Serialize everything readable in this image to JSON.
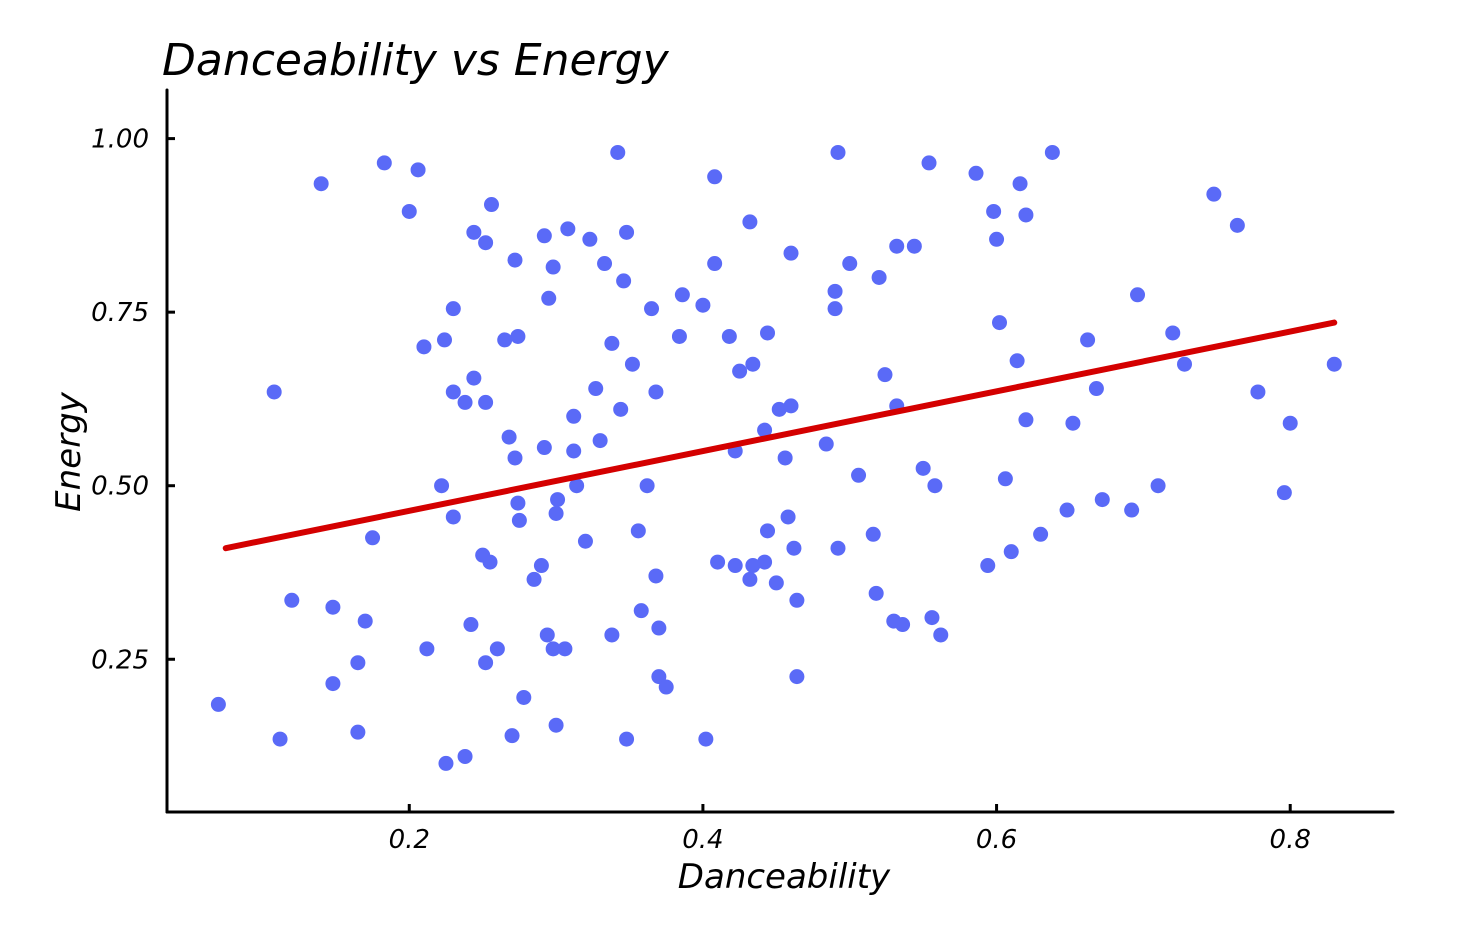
{
  "chart_data": {
    "type": "scatter",
    "title": "Danceability vs Energy",
    "xlabel": "Danceability",
    "ylabel": "Energy",
    "xlim": [
      0.035,
      0.87
    ],
    "ylim": [
      0.03,
      1.07
    ],
    "x_ticks": [
      {
        "value": 0.2,
        "label": "0.2"
      },
      {
        "value": 0.4,
        "label": "0.4"
      },
      {
        "value": 0.6,
        "label": "0.6"
      },
      {
        "value": 0.8,
        "label": "0.8"
      }
    ],
    "y_ticks": [
      {
        "value": 0.25,
        "label": "0.25"
      },
      {
        "value": 0.5,
        "label": "0.50"
      },
      {
        "value": 0.75,
        "label": "0.75"
      },
      {
        "value": 1.0,
        "label": "1.00"
      }
    ],
    "grid": false,
    "point_color": "#5a6af7",
    "trend_color": "#d40000",
    "trendline": {
      "x": [
        0.075,
        0.83
      ],
      "y": [
        0.41,
        0.735
      ]
    },
    "series": [
      {
        "points": [
          [
            0.07,
            0.185
          ],
          [
            0.108,
            0.635
          ],
          [
            0.112,
            0.135
          ],
          [
            0.12,
            0.335
          ],
          [
            0.14,
            0.935
          ],
          [
            0.148,
            0.325
          ],
          [
            0.148,
            0.215
          ],
          [
            0.165,
            0.245
          ],
          [
            0.165,
            0.145
          ],
          [
            0.17,
            0.305
          ],
          [
            0.175,
            0.425
          ],
          [
            0.183,
            0.965
          ],
          [
            0.2,
            0.895
          ],
          [
            0.206,
            0.955
          ],
          [
            0.21,
            0.7
          ],
          [
            0.212,
            0.265
          ],
          [
            0.222,
            0.5
          ],
          [
            0.224,
            0.71
          ],
          [
            0.225,
            0.1
          ],
          [
            0.23,
            0.635
          ],
          [
            0.23,
            0.755
          ],
          [
            0.23,
            0.455
          ],
          [
            0.238,
            0.11
          ],
          [
            0.238,
            0.62
          ],
          [
            0.242,
            0.3
          ],
          [
            0.244,
            0.655
          ],
          [
            0.244,
            0.865
          ],
          [
            0.25,
            0.4
          ],
          [
            0.252,
            0.62
          ],
          [
            0.252,
            0.85
          ],
          [
            0.252,
            0.245
          ],
          [
            0.255,
            0.39
          ],
          [
            0.256,
            0.905
          ],
          [
            0.26,
            0.265
          ],
          [
            0.265,
            0.71
          ],
          [
            0.268,
            0.57
          ],
          [
            0.27,
            0.14
          ],
          [
            0.272,
            0.825
          ],
          [
            0.272,
            0.54
          ],
          [
            0.274,
            0.475
          ],
          [
            0.274,
            0.715
          ],
          [
            0.275,
            0.45
          ],
          [
            0.278,
            0.195
          ],
          [
            0.285,
            0.365
          ],
          [
            0.29,
            0.385
          ],
          [
            0.292,
            0.86
          ],
          [
            0.292,
            0.555
          ],
          [
            0.294,
            0.285
          ],
          [
            0.295,
            0.77
          ],
          [
            0.298,
            0.815
          ],
          [
            0.298,
            0.265
          ],
          [
            0.3,
            0.155
          ],
          [
            0.3,
            0.46
          ],
          [
            0.301,
            0.48
          ],
          [
            0.306,
            0.265
          ],
          [
            0.308,
            0.87
          ],
          [
            0.312,
            0.6
          ],
          [
            0.312,
            0.55
          ],
          [
            0.314,
            0.5
          ],
          [
            0.32,
            0.42
          ],
          [
            0.323,
            0.855
          ],
          [
            0.327,
            0.64
          ],
          [
            0.33,
            0.565
          ],
          [
            0.333,
            0.82
          ],
          [
            0.338,
            0.705
          ],
          [
            0.338,
            0.285
          ],
          [
            0.342,
            0.98
          ],
          [
            0.344,
            0.61
          ],
          [
            0.346,
            0.795
          ],
          [
            0.348,
            0.865
          ],
          [
            0.348,
            0.135
          ],
          [
            0.352,
            0.675
          ],
          [
            0.356,
            0.435
          ],
          [
            0.358,
            0.32
          ],
          [
            0.362,
            0.5
          ],
          [
            0.365,
            0.755
          ],
          [
            0.368,
            0.635
          ],
          [
            0.368,
            0.37
          ],
          [
            0.37,
            0.225
          ],
          [
            0.37,
            0.295
          ],
          [
            0.375,
            0.21
          ],
          [
            0.384,
            0.715
          ],
          [
            0.386,
            0.775
          ],
          [
            0.4,
            0.76
          ],
          [
            0.402,
            0.135
          ],
          [
            0.408,
            0.945
          ],
          [
            0.408,
            0.82
          ],
          [
            0.41,
            0.39
          ],
          [
            0.418,
            0.715
          ],
          [
            0.422,
            0.385
          ],
          [
            0.422,
            0.55
          ],
          [
            0.425,
            0.665
          ],
          [
            0.432,
            0.88
          ],
          [
            0.432,
            0.365
          ],
          [
            0.434,
            0.675
          ],
          [
            0.434,
            0.385
          ],
          [
            0.442,
            0.39
          ],
          [
            0.442,
            0.58
          ],
          [
            0.444,
            0.72
          ],
          [
            0.444,
            0.435
          ],
          [
            0.45,
            0.36
          ],
          [
            0.452,
            0.61
          ],
          [
            0.456,
            0.54
          ],
          [
            0.458,
            0.455
          ],
          [
            0.46,
            0.615
          ],
          [
            0.46,
            0.835
          ],
          [
            0.462,
            0.41
          ],
          [
            0.464,
            0.225
          ],
          [
            0.464,
            0.335
          ],
          [
            0.484,
            0.56
          ],
          [
            0.49,
            0.78
          ],
          [
            0.49,
            0.755
          ],
          [
            0.492,
            0.98
          ],
          [
            0.492,
            0.41
          ],
          [
            0.5,
            0.82
          ],
          [
            0.506,
            0.515
          ],
          [
            0.516,
            0.43
          ],
          [
            0.518,
            0.345
          ],
          [
            0.52,
            0.8
          ],
          [
            0.524,
            0.66
          ],
          [
            0.53,
            0.305
          ],
          [
            0.532,
            0.615
          ],
          [
            0.532,
            0.845
          ],
          [
            0.536,
            0.3
          ],
          [
            0.544,
            0.845
          ],
          [
            0.55,
            0.525
          ],
          [
            0.554,
            0.965
          ],
          [
            0.556,
            0.31
          ],
          [
            0.558,
            0.5
          ],
          [
            0.562,
            0.285
          ],
          [
            0.586,
            0.95
          ],
          [
            0.594,
            0.385
          ],
          [
            0.598,
            0.895
          ],
          [
            0.6,
            0.855
          ],
          [
            0.602,
            0.735
          ],
          [
            0.606,
            0.51
          ],
          [
            0.61,
            0.405
          ],
          [
            0.614,
            0.68
          ],
          [
            0.616,
            0.935
          ],
          [
            0.62,
            0.595
          ],
          [
            0.62,
            0.89
          ],
          [
            0.63,
            0.43
          ],
          [
            0.638,
            0.98
          ],
          [
            0.648,
            0.465
          ],
          [
            0.652,
            0.59
          ],
          [
            0.662,
            0.71
          ],
          [
            0.668,
            0.64
          ],
          [
            0.672,
            0.48
          ],
          [
            0.692,
            0.465
          ],
          [
            0.696,
            0.775
          ],
          [
            0.71,
            0.5
          ],
          [
            0.72,
            0.72
          ],
          [
            0.728,
            0.675
          ],
          [
            0.748,
            0.92
          ],
          [
            0.764,
            0.875
          ],
          [
            0.778,
            0.635
          ],
          [
            0.796,
            0.49
          ],
          [
            0.8,
            0.59
          ],
          [
            0.83,
            0.675
          ]
        ]
      }
    ]
  }
}
